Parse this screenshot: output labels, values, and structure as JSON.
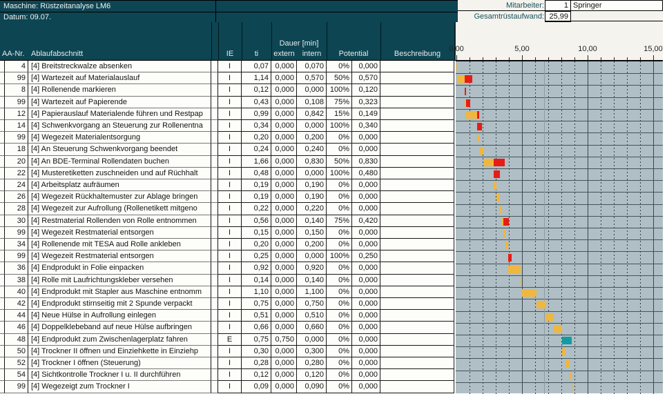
{
  "header": {
    "machine_label": "Maschine: Rüstzeitanalyse LM6",
    "date_label": "Datum: 09.07.",
    "mitarbeiter_label": "Mitarbeiter:",
    "mitarbeiter_count": "1",
    "mitarbeiter_name": "Springer",
    "gesamt_label": "Gesamtrüstaufwand:",
    "gesamt_value": "25,99"
  },
  "columns": {
    "aa_nr": "AA-Nr.",
    "ablaufabschnitt": "Ablaufabschnitt",
    "ie": "IE",
    "ti": "ti",
    "dauer_group": "Dauer [min]",
    "extern": "extern",
    "intern": "intern",
    "potential": "Potential",
    "beschreibung": "Beschreibung"
  },
  "axis": {
    "labels": [
      "0,00",
      "5,00",
      "10,00",
      "15,00"
    ],
    "major_step": 5,
    "minor_step": 1,
    "max_units": 15
  },
  "rows": [
    {
      "nr": "4",
      "text": "[4] Breitstreckwalze absenken",
      "ie": "I",
      "ti": "0,07",
      "extern": "0,000",
      "intern": "0,070",
      "pot_pct": "0%",
      "pot_val": "0,000",
      "beschreibung": ""
    },
    {
      "nr": "99",
      "text": "[4] Wartezeit auf Materialauslauf",
      "ie": "I",
      "ti": "1,14",
      "extern": "0,000",
      "intern": "0,570",
      "pot_pct": "50%",
      "pot_val": "0,570",
      "beschreibung": ""
    },
    {
      "nr": "8",
      "text": "[4] Rollenende markieren",
      "ie": "I",
      "ti": "0,12",
      "extern": "0,000",
      "intern": "0,000",
      "pot_pct": "100%",
      "pot_val": "0,120",
      "beschreibung": ""
    },
    {
      "nr": "99",
      "text": "[4] Wartezeit auf Papierende",
      "ie": "I",
      "ti": "0,43",
      "extern": "0,000",
      "intern": "0,108",
      "pot_pct": "75%",
      "pot_val": "0,323",
      "beschreibung": ""
    },
    {
      "nr": "12",
      "text": "[4] Papierauslauf Materialende führen und Restpap",
      "ie": "I",
      "ti": "0,99",
      "extern": "0,000",
      "intern": "0,842",
      "pot_pct": "15%",
      "pot_val": "0,149",
      "beschreibung": ""
    },
    {
      "nr": "14",
      "text": "[4] Schwenkvorgang an Steuerung zur Rollenentna",
      "ie": "I",
      "ti": "0,34",
      "extern": "0,000",
      "intern": "0,000",
      "pot_pct": "100%",
      "pot_val": "0,340",
      "beschreibung": ""
    },
    {
      "nr": "99",
      "text": "[4] Wegezeit Materialentsorgung",
      "ie": "I",
      "ti": "0,20",
      "extern": "0,000",
      "intern": "0,200",
      "pot_pct": "0%",
      "pot_val": "0,000",
      "beschreibung": ""
    },
    {
      "nr": "18",
      "text": "[4] An Steuerung Schwenkvorgang beendet",
      "ie": "I",
      "ti": "0,24",
      "extern": "0,000",
      "intern": "0,240",
      "pot_pct": "0%",
      "pot_val": "0,000",
      "beschreibung": ""
    },
    {
      "nr": "20",
      "text": "[4] An BDE-Terminal Rollendaten buchen",
      "ie": "I",
      "ti": "1,66",
      "extern": "0,000",
      "intern": "0,830",
      "pot_pct": "50%",
      "pot_val": "0,830",
      "beschreibung": ""
    },
    {
      "nr": "22",
      "text": "[4] Musteretiketten zuschneiden und auf Rüchhalt",
      "ie": "I",
      "ti": "0,48",
      "extern": "0,000",
      "intern": "0,000",
      "pot_pct": "100%",
      "pot_val": "0,480",
      "beschreibung": ""
    },
    {
      "nr": "24",
      "text": "[4] Arbeitsplatz aufräumen",
      "ie": "I",
      "ti": "0,19",
      "extern": "0,000",
      "intern": "0,190",
      "pot_pct": "0%",
      "pot_val": "0,000",
      "beschreibung": ""
    },
    {
      "nr": "26",
      "text": "[4] Wegezeit Rückhaltemuster zur Ablage bringen",
      "ie": "I",
      "ti": "0,19",
      "extern": "0,000",
      "intern": "0,190",
      "pot_pct": "0%",
      "pot_val": "0,000",
      "beschreibung": ""
    },
    {
      "nr": "28",
      "text": "[4] Wegezeit zur Aufrollung (Rollenetikett mitgeno",
      "ie": "I",
      "ti": "0,22",
      "extern": "0,000",
      "intern": "0,220",
      "pot_pct": "0%",
      "pot_val": "0,000",
      "beschreibung": ""
    },
    {
      "nr": "30",
      "text": "[4] Restmaterial Rollenden von Rolle entnommen",
      "ie": "I",
      "ti": "0,56",
      "extern": "0,000",
      "intern": "0,140",
      "pot_pct": "75%",
      "pot_val": "0,420",
      "beschreibung": ""
    },
    {
      "nr": "99",
      "text": "[4] Wegezeit Restmaterial entsorgen",
      "ie": "I",
      "ti": "0,15",
      "extern": "0,000",
      "intern": "0,150",
      "pot_pct": "0%",
      "pot_val": "0,000",
      "beschreibung": ""
    },
    {
      "nr": "34",
      "text": "[4] Rollenende mit TESA aud Rolle ankleben",
      "ie": "I",
      "ti": "0,20",
      "extern": "0,000",
      "intern": "0,200",
      "pot_pct": "0%",
      "pot_val": "0,000",
      "beschreibung": ""
    },
    {
      "nr": "99",
      "text": "[4] Wegezeit Restmaterial entsorgen",
      "ie": "I",
      "ti": "0,25",
      "extern": "0,000",
      "intern": "0,000",
      "pot_pct": "100%",
      "pot_val": "0,250",
      "beschreibung": ""
    },
    {
      "nr": "36",
      "text": "[4] Endprodukt in Folie einpacken",
      "ie": "I",
      "ti": "0,92",
      "extern": "0,000",
      "intern": "0,920",
      "pot_pct": "0%",
      "pot_val": "0,000",
      "beschreibung": ""
    },
    {
      "nr": "38",
      "text": "[4] Rolle mit Laufrichtungskleber versehen",
      "ie": "I",
      "ti": "0,14",
      "extern": "0,000",
      "intern": "0,140",
      "pot_pct": "0%",
      "pot_val": "0,000",
      "beschreibung": ""
    },
    {
      "nr": "40",
      "text": "[4] Endprodukt mit Stapler aus Maschine entnomm",
      "ie": "I",
      "ti": "1,10",
      "extern": "0,000",
      "intern": "1,100",
      "pot_pct": "0%",
      "pot_val": "0,000",
      "beschreibung": ""
    },
    {
      "nr": "42",
      "text": "[4] Endprodukt stirnseitig mit 2 Spunde verpackt",
      "ie": "I",
      "ti": "0,75",
      "extern": "0,000",
      "intern": "0,750",
      "pot_pct": "0%",
      "pot_val": "0,000",
      "beschreibung": ""
    },
    {
      "nr": "44",
      "text": "[4] Neue Hülse in Aufrollung einlegen",
      "ie": "I",
      "ti": "0,51",
      "extern": "0,000",
      "intern": "0,510",
      "pot_pct": "0%",
      "pot_val": "0,000",
      "beschreibung": ""
    },
    {
      "nr": "46",
      "text": "[4] Doppelklebeband auf neue Hülse aufbringen",
      "ie": "I",
      "ti": "0,66",
      "extern": "0,000",
      "intern": "0,660",
      "pot_pct": "0%",
      "pot_val": "0,000",
      "beschreibung": ""
    },
    {
      "nr": "48",
      "text": "[4] Endprodukt zum Zwischenlagerplatz fahren",
      "ie": "E",
      "ti": "0,75",
      "extern": "0,750",
      "intern": "0,000",
      "pot_pct": "0%",
      "pot_val": "0,000",
      "beschreibung": ""
    },
    {
      "nr": "50",
      "text": "[4] Trockner II öffnen und Einziehkette in Einziehp",
      "ie": "I",
      "ti": "0,30",
      "extern": "0,000",
      "intern": "0,300",
      "pot_pct": "0%",
      "pot_val": "0,000",
      "beschreibung": ""
    },
    {
      "nr": "52",
      "text": "[4] Trockner I öffnen (Steuerung)",
      "ie": "I",
      "ti": "0,28",
      "extern": "0,000",
      "intern": "0,280",
      "pot_pct": "0%",
      "pot_val": "0,000",
      "beschreibung": ""
    },
    {
      "nr": "54",
      "text": "[4] Sichtkontrolle Trockner I u. II durchführen",
      "ie": "I",
      "ti": "0,12",
      "extern": "0,000",
      "intern": "0,120",
      "pot_pct": "0%",
      "pot_val": "0,000",
      "beschreibung": ""
    },
    {
      "nr": "99",
      "text": "[4] Wegezeigt zum Trockner I",
      "ie": "I",
      "ti": "0,09",
      "extern": "0,000",
      "intern": "0,090",
      "pot_pct": "0%",
      "pot_val": "0,000",
      "beschreibung": ""
    }
  ],
  "colors": {
    "header_teal": "#0d4552",
    "chart_background": "#b0bec5",
    "bar_intern": "#efb73e",
    "bar_potential": "#e71c15",
    "bar_extern": "#139ba3"
  },
  "chart_data": {
    "type": "bar",
    "subtype": "cascading-gantt",
    "orientation": "horizontal",
    "axis_range": [
      0,
      15.7
    ],
    "axis_ticks": [
      "0,00",
      "5,00",
      "10,00",
      "15,00"
    ],
    "note": "One bar per table row; each bar starts at the cumulative sum of previous intern durations. Segments: intern (orange), potential saving (red), extern (teal).",
    "intern": [
      0.07,
      0.57,
      0.0,
      0.108,
      0.842,
      0.0,
      0.2,
      0.24,
      0.83,
      0.0,
      0.19,
      0.19,
      0.22,
      0.14,
      0.15,
      0.2,
      0.0,
      0.92,
      0.14,
      1.1,
      0.75,
      0.51,
      0.66,
      0.0,
      0.3,
      0.28,
      0.12,
      0.09
    ],
    "potential": [
      0.0,
      0.57,
      0.12,
      0.323,
      0.149,
      0.34,
      0.0,
      0.0,
      0.83,
      0.48,
      0.0,
      0.0,
      0.0,
      0.42,
      0.0,
      0.0,
      0.25,
      0.0,
      0.0,
      0.0,
      0.0,
      0.0,
      0.0,
      0.0,
      0.0,
      0.0,
      0.0,
      0.0
    ],
    "extern": [
      0.0,
      0.0,
      0.0,
      0.0,
      0.0,
      0.0,
      0.0,
      0.0,
      0.0,
      0.0,
      0.0,
      0.0,
      0.0,
      0.0,
      0.0,
      0.0,
      0.0,
      0.0,
      0.0,
      0.0,
      0.0,
      0.0,
      0.0,
      0.75,
      0.0,
      0.0,
      0.0,
      0.0
    ]
  }
}
